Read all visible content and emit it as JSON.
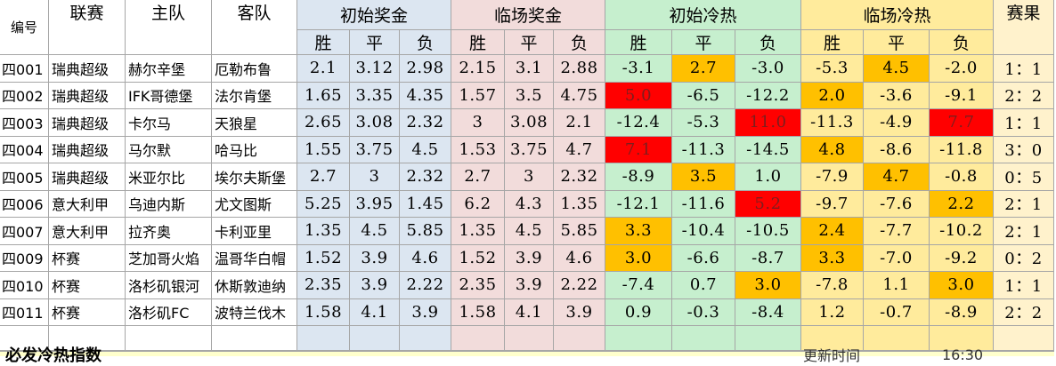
{
  "headers": {
    "id": "编号",
    "league": "联赛",
    "home": "主队",
    "away": "客队",
    "group_initial_bonus": "初始奖金",
    "group_final_bonus": "临场奖金",
    "group_initial_heat": "初始冷热",
    "group_final_heat": "临场冷热",
    "result": "赛果",
    "win": "胜",
    "draw": "平",
    "loss": "负"
  },
  "colors": {
    "bonus_initial_bg": "#dce6f1",
    "bonus_final_bg": "#f2dcdb",
    "heat_initial_bg": "#c6efce",
    "heat_final_bg": "#ffeb9c",
    "result_bg": "#fff2cc",
    "hot_red": "#ff0000",
    "warm_orange": "#ffc000"
  },
  "rows": [
    {
      "id": "四001",
      "league": "瑞典超级",
      "home": "赫尔辛堡",
      "away": "厄勒布鲁",
      "ib": [
        "2.1",
        "3.12",
        "2.98"
      ],
      "fb": [
        "2.15",
        "3.1",
        "2.88"
      ],
      "ih": [
        "-3.1",
        "2.7",
        "-3.0"
      ],
      "fh": [
        "-5.3",
        "4.5",
        "-2.0"
      ],
      "ihc": [
        "",
        "orange",
        ""
      ],
      "fhc": [
        "",
        "orange",
        ""
      ],
      "result": "1：1"
    },
    {
      "id": "四002",
      "league": "瑞典超级",
      "home": "IFK哥德堡",
      "away": "法尔肯堡",
      "ib": [
        "1.65",
        "3.35",
        "4.35"
      ],
      "fb": [
        "1.57",
        "3.5",
        "4.75"
      ],
      "ih": [
        "5.0",
        "-6.5",
        "-12.2"
      ],
      "fh": [
        "2.0",
        "-3.6",
        "-9.1"
      ],
      "ihc": [
        "red",
        "",
        ""
      ],
      "fhc": [
        "orange",
        "",
        ""
      ],
      "result": "2：2"
    },
    {
      "id": "四003",
      "league": "瑞典超级",
      "home": "卡尔马",
      "away": "天狼星",
      "ib": [
        "2.65",
        "3.08",
        "2.32"
      ],
      "fb": [
        "3",
        "3.08",
        "2.1"
      ],
      "ih": [
        "-12.4",
        "-5.3",
        "11.0"
      ],
      "fh": [
        "-11.3",
        "-4.9",
        "7.7"
      ],
      "ihc": [
        "",
        "",
        "red"
      ],
      "fhc": [
        "",
        "",
        "red"
      ],
      "result": "1：1"
    },
    {
      "id": "四004",
      "league": "瑞典超级",
      "home": "马尔默",
      "away": "哈马比",
      "ib": [
        "1.55",
        "3.75",
        "4.5"
      ],
      "fb": [
        "1.53",
        "3.75",
        "4.7"
      ],
      "ih": [
        "7.1",
        "-11.3",
        "-14.5"
      ],
      "fh": [
        "4.8",
        "-8.6",
        "-11.8"
      ],
      "ihc": [
        "red",
        "",
        ""
      ],
      "fhc": [
        "orange",
        "",
        ""
      ],
      "result": "3：0"
    },
    {
      "id": "四005",
      "league": "瑞典超级",
      "home": "米亚尔比",
      "away": "埃尔夫斯堡",
      "ib": [
        "2.7",
        "3",
        "2.32"
      ],
      "fb": [
        "2.7",
        "3",
        "2.32"
      ],
      "ih": [
        "-8.9",
        "3.5",
        "1.0"
      ],
      "fh": [
        "-7.9",
        "4.7",
        "-0.8"
      ],
      "ihc": [
        "",
        "orange",
        ""
      ],
      "fhc": [
        "",
        "orange",
        ""
      ],
      "result": "0：5"
    },
    {
      "id": "四006",
      "league": "意大利甲",
      "home": "乌迪内斯",
      "away": "尤文图斯",
      "ib": [
        "5.25",
        "3.95",
        "1.45"
      ],
      "fb": [
        "6.2",
        "4.3",
        "1.35"
      ],
      "ih": [
        "-12.1",
        "-11.6",
        "5.2"
      ],
      "fh": [
        "-9.7",
        "-7.6",
        "2.2"
      ],
      "ihc": [
        "",
        "",
        "red"
      ],
      "fhc": [
        "",
        "",
        "orange"
      ],
      "result": "2：1"
    },
    {
      "id": "四007",
      "league": "意大利甲",
      "home": "拉齐奥",
      "away": "卡利亚里",
      "ib": [
        "1.35",
        "4.5",
        "5.85"
      ],
      "fb": [
        "1.35",
        "4.5",
        "5.85"
      ],
      "ih": [
        "3.3",
        "-10.4",
        "-10.5"
      ],
      "fh": [
        "2.4",
        "-7.7",
        "-10.2"
      ],
      "ihc": [
        "orange",
        "",
        ""
      ],
      "fhc": [
        "orange",
        "",
        ""
      ],
      "result": "2：1"
    },
    {
      "id": "四009",
      "league": "杯赛",
      "home": "芝加哥火焰",
      "away": "温哥华白帽",
      "ib": [
        "1.52",
        "3.9",
        "4.6"
      ],
      "fb": [
        "1.52",
        "3.9",
        "4.6"
      ],
      "ih": [
        "3.0",
        "-6.6",
        "-8.7"
      ],
      "fh": [
        "3.3",
        "-7.0",
        "-9.2"
      ],
      "ihc": [
        "orange",
        "",
        ""
      ],
      "fhc": [
        "orange",
        "",
        ""
      ],
      "result": "0：2"
    },
    {
      "id": "四010",
      "league": "杯赛",
      "home": "洛杉矶银河",
      "away": "休斯敦迪纳",
      "ib": [
        "2.35",
        "3.9",
        "2.22"
      ],
      "fb": [
        "2.35",
        "3.9",
        "2.22"
      ],
      "ih": [
        "-7.4",
        "0.7",
        "3.0"
      ],
      "fh": [
        "-7.8",
        "1.1",
        "3.0"
      ],
      "ihc": [
        "",
        "",
        "orange"
      ],
      "fhc": [
        "",
        "",
        "orange"
      ],
      "result": "1：1"
    },
    {
      "id": "四011",
      "league": "杯赛",
      "home": "洛杉矶FC",
      "away": "波特兰伐木",
      "ib": [
        "1.58",
        "4.1",
        "3.9"
      ],
      "fb": [
        "1.58",
        "4.1",
        "3.9"
      ],
      "ih": [
        "0.9",
        "-0.3",
        "-8.4"
      ],
      "fh": [
        "1.2",
        "-0.7",
        "-8.9"
      ],
      "ihc": [
        "",
        "",
        ""
      ],
      "fhc": [
        "",
        "",
        ""
      ],
      "result": "2：2"
    }
  ],
  "footer": {
    "title": "必发冷热指数",
    "update_label": "更新时间",
    "update_time": "16:30"
  }
}
